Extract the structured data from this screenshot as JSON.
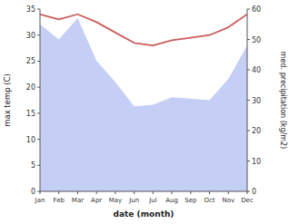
{
  "chart_data": {
    "type": "line",
    "xlabel": "date (month)",
    "ylabel": "max temp (C)",
    "y2label": "med. precipitation (kg/m2)",
    "categories": [
      "Jan",
      "Feb",
      "Mar",
      "Apr",
      "May",
      "Jun",
      "Jul",
      "Aug",
      "Sep",
      "Oct",
      "Nov",
      "Dec"
    ],
    "series": [
      {
        "type": "area",
        "axis": "y2",
        "color": "#c5cef5",
        "values": [
          55.0,
          50.0,
          57.0,
          43.0,
          36.0,
          28.0,
          28.5,
          31.0,
          30.5,
          30.0,
          37.0,
          48.0
        ]
      },
      {
        "type": "line",
        "color": "#cd5c5c",
        "values": [
          34.0,
          33.0,
          34.0,
          32.5,
          30.5,
          28.5,
          28.0,
          29.0,
          29.5,
          30.0,
          31.5,
          34.0
        ]
      }
    ],
    "ylim": [
      0,
      35
    ],
    "yticks": [
      0,
      5,
      10,
      15,
      20,
      25,
      30,
      35
    ],
    "y2lim": [
      0,
      60
    ],
    "y2ticks": [
      0,
      10,
      20,
      30,
      40,
      50,
      60
    ],
    "grid": false
  }
}
